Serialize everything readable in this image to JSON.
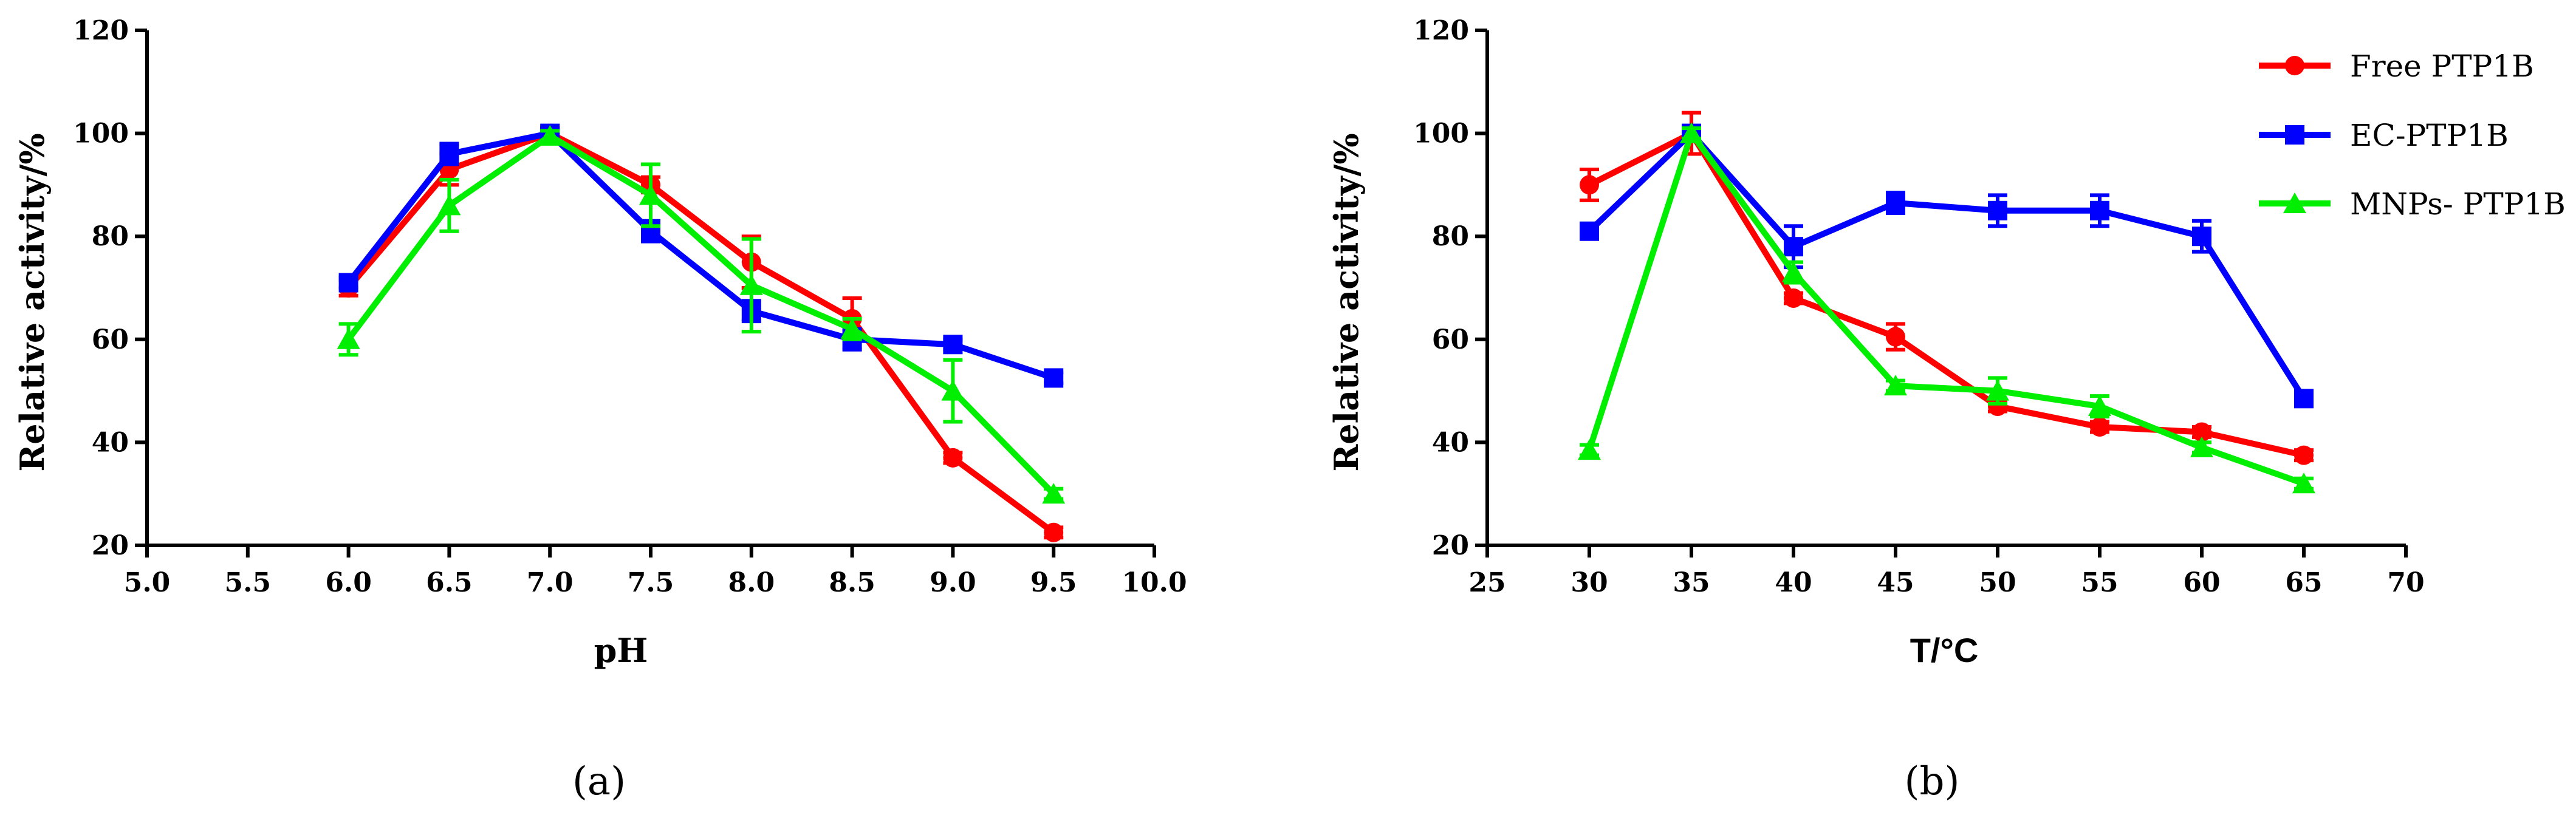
{
  "colors": {
    "free": "#ff0000",
    "ec": "#0000ff",
    "mnp": "#00ee00",
    "axis": "#000000"
  },
  "legend": {
    "items": [
      {
        "name": "Free PTP1B",
        "color": "#ff0000",
        "marker": "circle"
      },
      {
        "name": "EC-PTP1B",
        "color": "#0000ff",
        "marker": "square"
      },
      {
        "name": "MNPs- PTP1B",
        "color": "#00ee00",
        "marker": "triangle"
      }
    ]
  },
  "chart_data": [
    {
      "type": "line",
      "panel_label": "(a)",
      "title": "",
      "xlabel": "pH",
      "ylabel": "Relative activity/%",
      "xlim": [
        5.0,
        10.0
      ],
      "ylim": [
        20,
        120
      ],
      "xticks": [
        "5.0",
        "5.5",
        "6.0",
        "6.5",
        "7.0",
        "7.5",
        "8.0",
        "8.5",
        "9.0",
        "9.5",
        "10.0"
      ],
      "yticks": [
        "20",
        "40",
        "60",
        "80",
        "100",
        "120"
      ],
      "x": [
        6.0,
        6.5,
        7.0,
        7.5,
        8.0,
        8.5,
        9.0,
        9.5
      ],
      "series": [
        {
          "name": "Free PTP1B",
          "marker": "circle",
          "color": "#ff0000",
          "values": [
            70,
            93,
            100,
            90,
            75,
            64,
            37,
            22.5
          ],
          "errors": [
            1.5,
            3,
            1,
            1.5,
            5,
            4,
            1,
            1
          ]
        },
        {
          "name": "EC-PTP1B",
          "marker": "square",
          "color": "#0000ff",
          "values": [
            71,
            96,
            100,
            81,
            65.5,
            60,
            59,
            52.5
          ],
          "errors": [
            1,
            2,
            1,
            2,
            2,
            2,
            1,
            1
          ]
        },
        {
          "name": "MNPs- PTP1B",
          "marker": "triangle",
          "color": "#00ee00",
          "values": [
            60,
            86,
            99.5,
            88,
            70.5,
            62,
            50,
            30
          ],
          "errors": [
            3,
            5,
            1,
            6,
            9,
            2,
            6,
            1
          ]
        }
      ],
      "grid": false
    },
    {
      "type": "line",
      "panel_label": "(b)",
      "title": "",
      "xlabel": "T/°C",
      "ylabel": "Relative activity/%",
      "xlim": [
        25,
        70
      ],
      "ylim": [
        20,
        120
      ],
      "xticks": [
        "25",
        "30",
        "35",
        "40",
        "45",
        "50",
        "55",
        "60",
        "65",
        "70"
      ],
      "yticks": [
        "20",
        "40",
        "60",
        "80",
        "100",
        "120"
      ],
      "x": [
        30,
        35,
        40,
        45,
        50,
        55,
        60,
        65
      ],
      "series": [
        {
          "name": "Free PTP1B",
          "marker": "circle",
          "color": "#ff0000",
          "values": [
            90,
            100,
            68,
            60.5,
            47,
            43,
            42,
            37.5
          ],
          "errors": [
            3,
            4,
            1,
            2.5,
            1,
            1,
            1,
            1
          ]
        },
        {
          "name": "EC-PTP1B",
          "marker": "square",
          "color": "#0000ff",
          "values": [
            81,
            100,
            78,
            86.5,
            85,
            85,
            80,
            48.5
          ],
          "errors": [
            1,
            1,
            4,
            2,
            3,
            3,
            3,
            1
          ]
        },
        {
          "name": "MNPs- PTP1B",
          "marker": "triangle",
          "color": "#00ee00",
          "values": [
            38.5,
            100,
            73,
            51,
            50,
            47,
            39,
            32
          ],
          "errors": [
            1,
            1,
            2,
            1,
            2.5,
            2,
            1,
            1
          ]
        }
      ],
      "grid": false,
      "legend_position": "top-right"
    }
  ]
}
